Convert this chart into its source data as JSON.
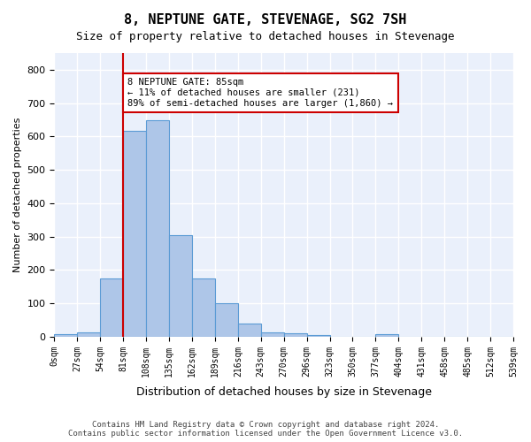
{
  "title": "8, NEPTUNE GATE, STEVENAGE, SG2 7SH",
  "subtitle": "Size of property relative to detached houses in Stevenage",
  "xlabel": "Distribution of detached houses by size in Stevenage",
  "ylabel": "Number of detached properties",
  "bar_color": "#aec6e8",
  "bar_edge_color": "#5b9bd5",
  "background_color": "#ffffff",
  "plot_bg_color": "#eaf0fb",
  "grid_color": "#ffffff",
  "vline_color": "#cc0000",
  "vline_x": 3,
  "annotation_text": "8 NEPTUNE GATE: 85sqm\n← 11% of detached houses are smaller (231)\n89% of semi-detached houses are larger (1,860) →",
  "annotation_box_color": "#ffffff",
  "annotation_box_edge": "#cc0000",
  "bin_labels": [
    "0sqm",
    "27sqm",
    "54sqm",
    "81sqm",
    "108sqm",
    "135sqm",
    "162sqm",
    "189sqm",
    "216sqm",
    "243sqm",
    "270sqm",
    "296sqm",
    "323sqm",
    "350sqm",
    "377sqm",
    "404sqm",
    "431sqm",
    "458sqm",
    "485sqm",
    "512sqm",
    "539sqm"
  ],
  "bar_heights": [
    8,
    14,
    175,
    617,
    648,
    305,
    175,
    100,
    40,
    14,
    10,
    5,
    0,
    0,
    8,
    0,
    0,
    0,
    0,
    0
  ],
  "ylim": [
    0,
    850
  ],
  "yticks": [
    0,
    100,
    200,
    300,
    400,
    500,
    600,
    700,
    800
  ],
  "footer_text": "Contains HM Land Registry data © Crown copyright and database right 2024.\nContains public sector information licensed under the Open Government Licence v3.0.",
  "figsize": [
    6.0,
    5.0
  ],
  "dpi": 100
}
